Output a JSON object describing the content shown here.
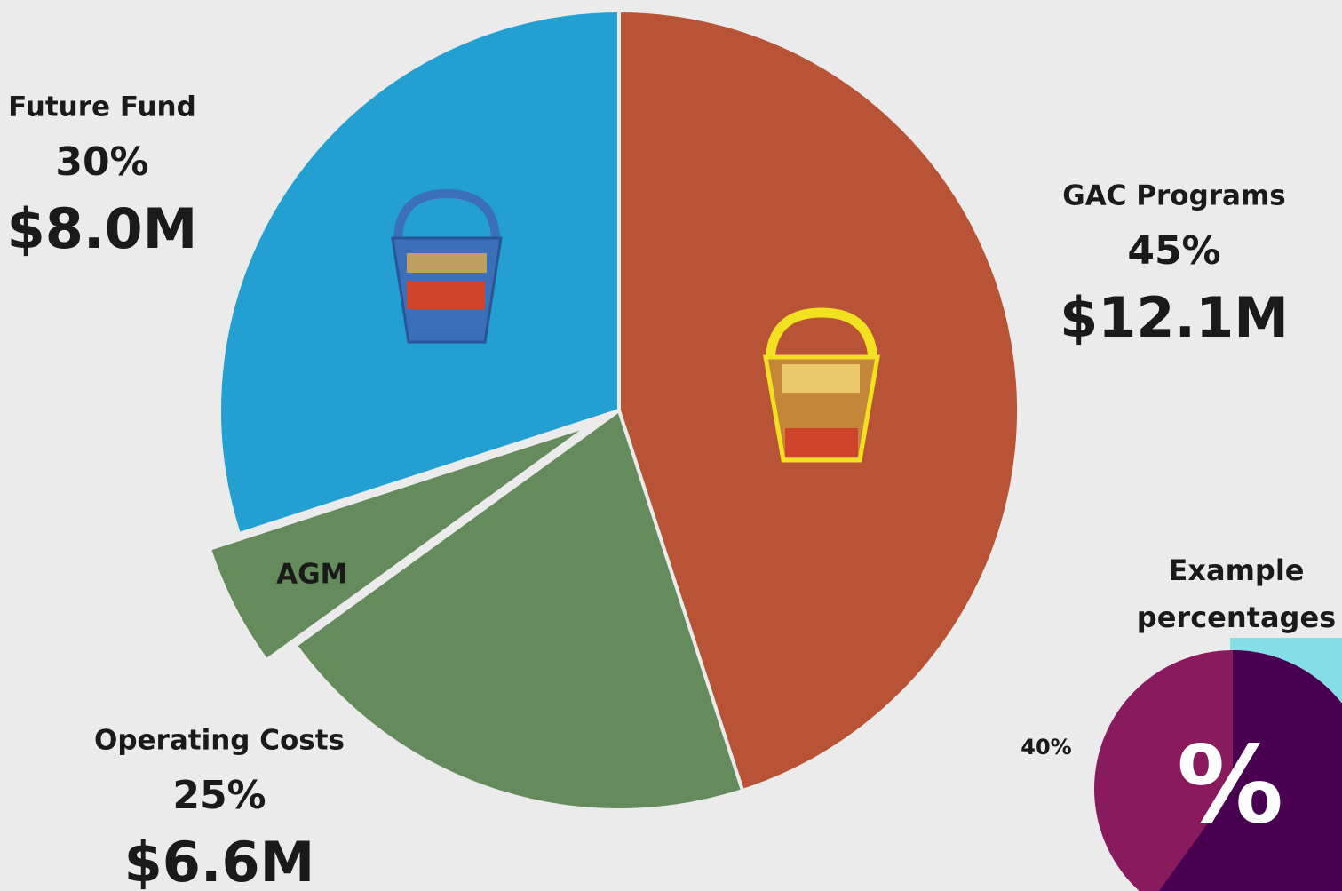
{
  "chart_data": {
    "type": "pie",
    "categories": [
      "GAC Programs",
      "Operating Costs",
      "Future Fund"
    ],
    "values": [
      45,
      25,
      30
    ],
    "value_labels": [
      "45%",
      "25%",
      "30%"
    ],
    "amounts": [
      "$12.1M",
      "$6.6M",
      "$8.0M"
    ],
    "colors": [
      "#b95335",
      "#658a5c",
      "#239fd2"
    ],
    "sub_slice": {
      "label": "AGM",
      "value": 5
    },
    "example": {
      "title": "Example percentages",
      "label": "40%",
      "symbol": "%"
    }
  }
}
